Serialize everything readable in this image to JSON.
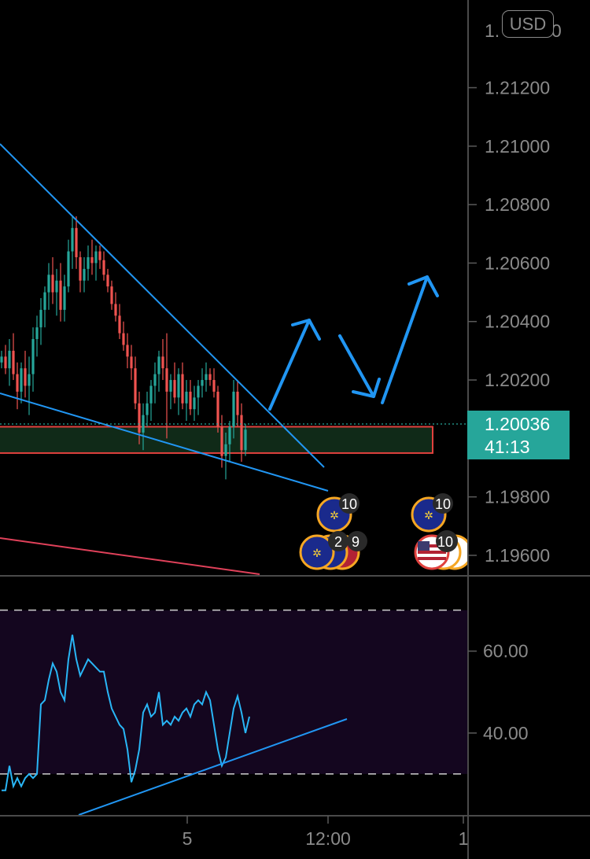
{
  "currency": "USD",
  "last_price": "1.20036",
  "countdown": "41:13",
  "price_axis": {
    "partial_top_label": "1.",
    "partial_top_label_tail": "0",
    "labels": [
      "1.21200",
      "1.21000",
      "1.20800",
      "1.20600",
      "1.20400",
      "1.20200",
      "1.19800",
      "1.19600"
    ]
  },
  "oscillator_axis": {
    "labels": [
      "60.00",
      "40.00"
    ]
  },
  "time_axis": {
    "labels": [
      "5",
      "12:00",
      "1"
    ]
  },
  "events": [
    {
      "icon": "eu-flag-icon",
      "count": "10"
    },
    {
      "icon": "eu-flag-icon",
      "count": "10"
    },
    {
      "icon": "eu-flag-icon",
      "count": "2"
    },
    {
      "icon": "eu-flag-icon",
      "count": "9"
    },
    {
      "icon": "us-flag-icon",
      "count": "10"
    }
  ],
  "colors": {
    "up": "#26a69a",
    "down": "#ef5350",
    "trendline": "#2196f3",
    "zone_fill": "#102a18",
    "zone_border": "#e0413e",
    "oscillator": "#29b6f6",
    "oscillator_band": "#14061f",
    "last_price_bg": "#26a69a",
    "axis_text": "#8a8a8a"
  },
  "chart_data": [
    {
      "type": "candlestick",
      "ylim": [
        1.1953,
        1.215
      ],
      "y_ticks": [
        1.212,
        1.21,
        1.208,
        1.206,
        1.204,
        1.202,
        1.198,
        1.196
      ],
      "last": 1.20036,
      "support_zone": [
        1.1995,
        1.2004
      ],
      "candles": [
        [
          1.2026,
          1.203,
          1.2024,
          1.2028
        ],
        [
          1.2028,
          1.2032,
          1.2022,
          1.2024
        ],
        [
          1.2024,
          1.2034,
          1.2018,
          1.203
        ],
        [
          1.203,
          1.2036,
          1.202,
          1.2022
        ],
        [
          1.2022,
          1.2026,
          1.201,
          1.2016
        ],
        [
          1.2016,
          1.2026,
          1.2012,
          1.2024
        ],
        [
          1.2024,
          1.203,
          1.2014,
          1.2018
        ],
        [
          1.2018,
          1.2028,
          1.2008,
          1.2022
        ],
        [
          1.2022,
          1.2038,
          1.2016,
          1.2034
        ],
        [
          1.2034,
          1.2042,
          1.2028,
          1.2038
        ],
        [
          1.2038,
          1.2048,
          1.2032,
          1.2044
        ],
        [
          1.2044,
          1.2052,
          1.2038,
          1.205
        ],
        [
          1.205,
          1.206,
          1.2044,
          1.2056
        ],
        [
          1.2056,
          1.2062,
          1.2046,
          1.205
        ],
        [
          1.205,
          1.2058,
          1.2042,
          1.2054
        ],
        [
          1.2054,
          1.206,
          1.204,
          1.2044
        ],
        [
          1.2044,
          1.2056,
          1.204,
          1.2052
        ],
        [
          1.2052,
          1.2068,
          1.205,
          1.2064
        ],
        [
          1.2064,
          1.2076,
          1.2058,
          1.2072
        ],
        [
          1.2072,
          1.2076,
          1.2058,
          1.2062
        ],
        [
          1.2062,
          1.2064,
          1.205,
          1.2054
        ],
        [
          1.2054,
          1.2062,
          1.205,
          1.2058
        ],
        [
          1.2058,
          1.2066,
          1.2054,
          1.2062
        ],
        [
          1.2062,
          1.2068,
          1.2056,
          1.206
        ],
        [
          1.206,
          1.2066,
          1.2054,
          1.2064
        ],
        [
          1.2064,
          1.2066,
          1.2058,
          1.2061
        ],
        [
          1.2061,
          1.2064,
          1.2054,
          1.2056
        ],
        [
          1.2056,
          1.2058,
          1.205,
          1.2052
        ],
        [
          1.2052,
          1.2054,
          1.2044,
          1.2046
        ],
        [
          1.2046,
          1.205,
          1.204,
          1.2042
        ],
        [
          1.2042,
          1.2046,
          1.2034,
          1.2036
        ],
        [
          1.2036,
          1.204,
          1.203,
          1.2032
        ],
        [
          1.2032,
          1.2036,
          1.2024,
          1.2028
        ],
        [
          1.2028,
          1.2032,
          1.202,
          1.2024
        ],
        [
          1.2024,
          1.2028,
          1.201,
          1.2012
        ],
        [
          1.2012,
          1.2016,
          1.1998,
          1.2002
        ],
        [
          1.2002,
          1.2012,
          1.1996,
          1.2008
        ],
        [
          1.2008,
          1.2016,
          1.2004,
          1.2012
        ],
        [
          1.2012,
          1.202,
          1.2006,
          1.2018
        ],
        [
          1.2018,
          1.2026,
          1.2012,
          1.2022
        ],
        [
          1.2022,
          1.203,
          1.2016,
          1.2028
        ],
        [
          1.2028,
          1.2034,
          1.202,
          1.2024
        ],
        [
          1.2024,
          1.2036,
          1.2,
          1.2016
        ],
        [
          1.2016,
          1.2022,
          1.201,
          1.202
        ],
        [
          1.202,
          1.2026,
          1.2012,
          1.2014
        ],
        [
          1.2014,
          1.2024,
          1.2008,
          1.2022
        ],
        [
          1.2022,
          1.2026,
          1.201,
          1.2012
        ],
        [
          1.2012,
          1.202,
          1.2006,
          1.2016
        ],
        [
          1.2016,
          1.202,
          1.2008,
          1.201
        ],
        [
          1.201,
          1.2018,
          1.2006,
          1.2014
        ],
        [
          1.2014,
          1.202,
          1.2008,
          1.2018
        ],
        [
          1.2018,
          1.2024,
          1.2014,
          1.202
        ],
        [
          1.202,
          1.2026,
          1.2016,
          1.2022
        ],
        [
          1.2022,
          1.2024,
          1.2018,
          1.202
        ],
        [
          1.202,
          1.2024,
          1.2014,
          1.2016
        ],
        [
          1.2016,
          1.2018,
          1.2002,
          1.2004
        ],
        [
          1.2004,
          1.2008,
          1.199,
          1.1994
        ],
        [
          1.1994,
          1.2002,
          1.1986,
          1.1998
        ],
        [
          1.1998,
          1.2006,
          1.1992,
          1.2004
        ],
        [
          1.2004,
          1.202,
          1.2,
          1.2016
        ],
        [
          1.2016,
          1.202,
          1.2004,
          1.2008
        ],
        [
          1.2008,
          1.2012,
          1.1992,
          1.1996
        ],
        [
          1.1996,
          1.2005,
          1.1994,
          1.2003
        ]
      ]
    },
    {
      "type": "line",
      "ylim": [
        20,
        78
      ],
      "y_ticks": [
        60,
        40
      ],
      "band": [
        30,
        70
      ],
      "x": [
        0,
        1,
        2,
        3,
        4,
        5,
        6,
        7,
        8,
        9,
        10,
        11,
        12,
        13,
        14,
        15,
        16,
        17,
        18,
        19,
        20,
        21,
        22,
        23,
        24,
        25,
        26,
        27,
        28,
        29,
        30,
        31,
        32,
        33,
        34,
        35,
        36,
        37,
        38,
        39,
        40,
        41,
        42,
        43,
        44,
        45,
        46,
        47,
        48,
        49,
        50,
        51,
        52,
        53,
        54,
        55,
        56,
        57,
        58,
        59,
        60,
        61,
        62,
        63
      ],
      "values": [
        26,
        26,
        32,
        27,
        29,
        27,
        29,
        30,
        29,
        30,
        47,
        48,
        53,
        57,
        55,
        50,
        48,
        58,
        64,
        58,
        54,
        56,
        58,
        57,
        56,
        55,
        55,
        50,
        46,
        44,
        42,
        41,
        36,
        28,
        31,
        36,
        45,
        47,
        44,
        45,
        50,
        42,
        43,
        42,
        44,
        43,
        45,
        46,
        44,
        47,
        48,
        47,
        50,
        48,
        42,
        36,
        32,
        34,
        40,
        46,
        49,
        45,
        40,
        44
      ]
    }
  ]
}
